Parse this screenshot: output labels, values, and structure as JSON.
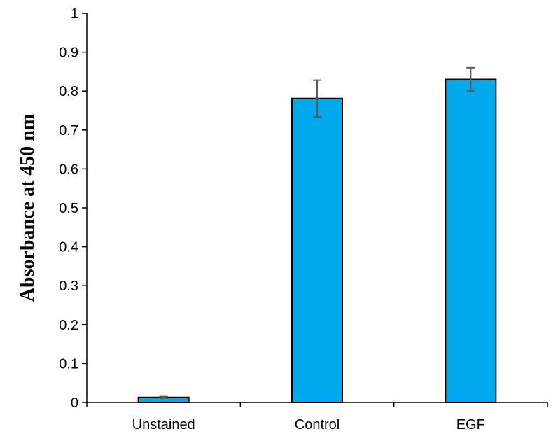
{
  "chart_data": {
    "type": "bar",
    "title": "",
    "xlabel": "",
    "ylabel": "Absorbance at 450 nm",
    "categories": [
      "Unstained",
      "Control",
      "EGF"
    ],
    "values": [
      0.013,
      0.781,
      0.83
    ],
    "errors": [
      0.002,
      0.047,
      0.03
    ],
    "ylim": [
      0,
      1
    ],
    "yticks": [
      0,
      0.1,
      0.2,
      0.3,
      0.4,
      0.5,
      0.6,
      0.7,
      0.8,
      0.9,
      1
    ],
    "ytick_labels": [
      "0",
      "0.1",
      "0.2",
      "0.3",
      "0.4",
      "0.5",
      "0.6",
      "0.7",
      "0.8",
      "0.9",
      "1"
    ],
    "grid": false,
    "legend": "none",
    "colors": {
      "bar_fill": "#00A8EC",
      "bar_stroke": "#000000",
      "error_bar": "#595959",
      "axis": "#000000"
    }
  }
}
